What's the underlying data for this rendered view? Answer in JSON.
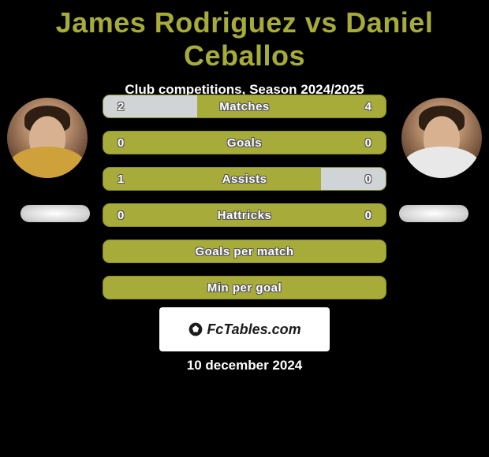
{
  "title": "James Rodriguez vs Daniel Ceballos",
  "subtitle": "Club competitions, Season 2024/2025",
  "date": "10 december 2024",
  "brand": "FcTables.com",
  "colors": {
    "accent": "#a6ab3a",
    "accent_border": "#8a8e2e",
    "fill_neutral": "#d0d4d7",
    "background": "#000000",
    "text_light": "#ffffff",
    "logo_bg": "#ffffff",
    "logo_text": "#1c1c1c"
  },
  "typography": {
    "title_fontsize": 36,
    "title_weight": 900,
    "subtitle_fontsize": 17,
    "stat_label_fontsize": 15,
    "stat_weight": 700,
    "date_fontsize": 17
  },
  "stats": [
    {
      "label": "Matches",
      "left_value": "2",
      "right_value": "4",
      "left_pct": 33.3,
      "right_pct": 0
    },
    {
      "label": "Goals",
      "left_value": "0",
      "right_value": "0",
      "left_pct": 0,
      "right_pct": 0
    },
    {
      "label": "Assists",
      "left_value": "1",
      "right_value": "0",
      "left_pct": 0,
      "right_pct": 23
    },
    {
      "label": "Hattricks",
      "left_value": "0",
      "right_value": "0",
      "left_pct": 0,
      "right_pct": 0
    },
    {
      "label": "Goals per match",
      "left_value": "",
      "right_value": "",
      "left_pct": 0,
      "right_pct": 0
    },
    {
      "label": "Min per goal",
      "left_value": "",
      "right_value": "",
      "left_pct": 0,
      "right_pct": 0
    }
  ]
}
